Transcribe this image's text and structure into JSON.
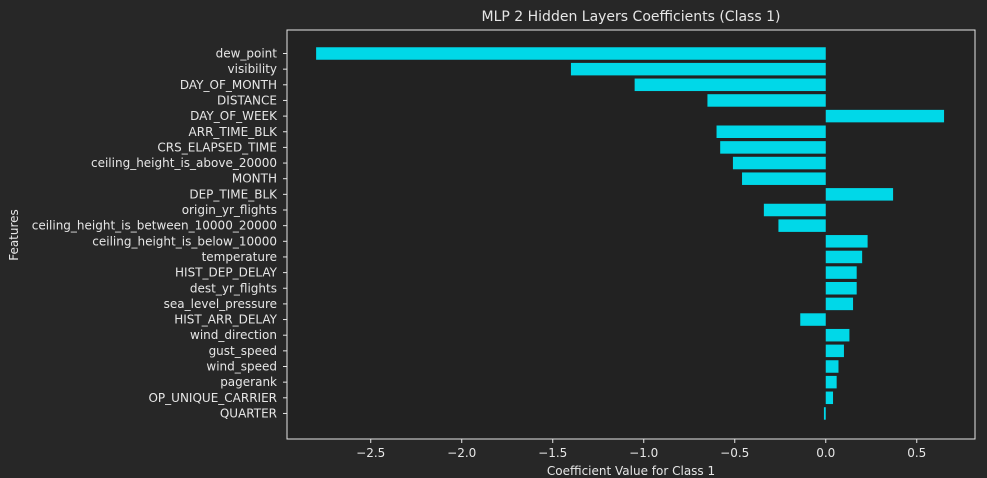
{
  "chart_data": {
    "type": "bar",
    "orientation": "horizontal",
    "title": "MLP 2 Hidden Layers Coefficients (Class 1)",
    "xlabel": "Coefficient Value for Class 1",
    "ylabel": "Features",
    "xlim": [
      -2.96,
      0.82
    ],
    "xticks": [
      -2.5,
      -2.0,
      -1.5,
      -1.0,
      -0.5,
      0.0,
      0.5
    ],
    "xtick_labels": [
      "−2.5",
      "−2.0",
      "−1.5",
      "−1.0",
      "−0.5",
      "0.0",
      "0.5"
    ],
    "grid": false,
    "bar_color": "#00d8e8",
    "categories": [
      "dew_point",
      "visibility",
      "DAY_OF_MONTH",
      "DISTANCE",
      "DAY_OF_WEEK",
      "ARR_TIME_BLK",
      "CRS_ELAPSED_TIME",
      "ceiling_height_is_above_20000",
      "MONTH",
      "DEP_TIME_BLK",
      "origin_yr_flights",
      "ceiling_height_is_between_10000_20000",
      "ceiling_height_is_below_10000",
      "temperature",
      "HIST_DEP_DELAY",
      "dest_yr_flights",
      "sea_level_pressure",
      "HIST_ARR_DELAY",
      "wind_direction",
      "gust_speed",
      "wind_speed",
      "pagerank",
      "OP_UNIQUE_CARRIER",
      "QUARTER"
    ],
    "values": [
      -2.8,
      -1.4,
      -1.05,
      -0.65,
      0.65,
      -0.6,
      -0.58,
      -0.51,
      -0.46,
      0.37,
      -0.34,
      -0.26,
      0.23,
      0.2,
      0.17,
      0.17,
      0.15,
      -0.14,
      0.13,
      0.1,
      0.07,
      0.06,
      0.04,
      -0.01
    ]
  }
}
